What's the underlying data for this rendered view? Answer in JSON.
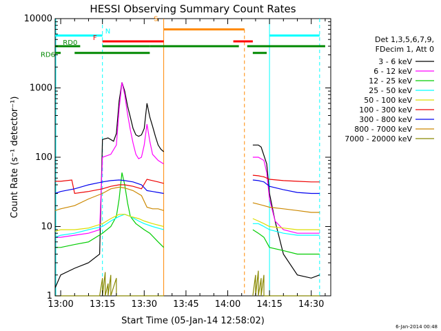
{
  "chart_data": {
    "type": "line",
    "title": "HESSI Observing Summary Count Rates",
    "xlabel": "Start Time (05-Jan-14 12:58:02)",
    "ylabel": "Count Rate (s⁻¹ detector⁻¹)",
    "y_scale": "log",
    "ylim": [
      1,
      10000
    ],
    "xlim": [
      "12:58",
      "14:37"
    ],
    "x_ticks": [
      "13:00",
      "13:15",
      "13:30",
      "13:45",
      "14:00",
      "14:15",
      "14:30"
    ],
    "y_ticks": [
      "1",
      "10",
      "100",
      "1000",
      "10000"
    ],
    "timestamp": "6-Jan-2014 00:48",
    "legend_header": [
      "Det 1,3,5,6,7,9,",
      "FDecim 1, Att 0"
    ],
    "legend_position": "right",
    "data_gaps": [
      [
        "13:37",
        "14:09"
      ]
    ],
    "flag_bars": [
      {
        "label": "N",
        "color": "#00ffff",
        "intervals": [
          [
            "12:58",
            "13:15"
          ],
          [
            "14:15",
            "14:33"
          ]
        ],
        "level": 5700
      },
      {
        "label": "F",
        "color": "#ff0000",
        "intervals": [
          [
            "13:15",
            "13:37"
          ],
          [
            "14:02",
            "14:09"
          ]
        ],
        "level": 4700
      },
      {
        "label": "S",
        "color": "#ff8800",
        "intervals": [
          [
            "13:37",
            "14:06"
          ]
        ],
        "level": 7000
      },
      {
        "label": "RD0",
        "color": "#008800",
        "intervals": [
          [
            "12:58",
            "13:07"
          ],
          [
            "13:15",
            "13:32"
          ],
          [
            "13:32",
            "14:04"
          ],
          [
            "14:07",
            "14:35"
          ]
        ],
        "level": 4000
      },
      {
        "label": "RD6",
        "color": "#008800",
        "intervals": [
          [
            "12:58",
            "13:00"
          ],
          [
            "13:05",
            "13:32"
          ],
          [
            "14:09",
            "14:14"
          ]
        ],
        "level": 3200
      }
    ],
    "series": [
      {
        "name": "3 - 6 keV",
        "color": "#000000",
        "points": [
          [
            "12:58",
            1.3
          ],
          [
            "13:00",
            2
          ],
          [
            "13:05",
            2.5
          ],
          [
            "13:10",
            3
          ],
          [
            "13:14",
            4
          ],
          [
            "13:15",
            180
          ],
          [
            "13:17",
            190
          ],
          [
            "13:19",
            170
          ],
          [
            "13:20",
            220
          ],
          [
            "13:21",
            650
          ],
          [
            "13:22",
            1200
          ],
          [
            "13:23",
            900
          ],
          [
            "13:24",
            550
          ],
          [
            "13:25",
            380
          ],
          [
            "13:26",
            260
          ],
          [
            "13:27",
            210
          ],
          [
            "13:28",
            200
          ],
          [
            "13:29",
            210
          ],
          [
            "13:30",
            260
          ],
          [
            "13:31",
            600
          ],
          [
            "13:32",
            380
          ],
          [
            "13:33",
            280
          ],
          [
            "13:34",
            200
          ],
          [
            "13:35",
            150
          ],
          [
            "13:36",
            130
          ],
          [
            "13:37",
            120
          ],
          [
            "14:09",
            150
          ],
          [
            "14:11",
            150
          ],
          [
            "14:12",
            140
          ],
          [
            "14:14",
            80
          ],
          [
            "14:15",
            30
          ],
          [
            "14:17",
            12
          ],
          [
            "14:20",
            4
          ],
          [
            "14:25",
            2
          ],
          [
            "14:30",
            1.8
          ],
          [
            "14:33",
            2
          ]
        ]
      },
      {
        "name": "6 - 12 keV",
        "color": "#ff00ff",
        "points": [
          [
            "12:58",
            7
          ],
          [
            "13:00",
            7
          ],
          [
            "13:05",
            7.5
          ],
          [
            "13:10",
            8
          ],
          [
            "13:14",
            9
          ],
          [
            "13:15",
            100
          ],
          [
            "13:18",
            110
          ],
          [
            "13:20",
            150
          ],
          [
            "13:21",
            500
          ],
          [
            "13:22",
            1200
          ],
          [
            "13:23",
            800
          ],
          [
            "13:24",
            420
          ],
          [
            "13:25",
            250
          ],
          [
            "13:26",
            160
          ],
          [
            "13:27",
            110
          ],
          [
            "13:28",
            95
          ],
          [
            "13:29",
            100
          ],
          [
            "13:30",
            150
          ],
          [
            "13:31",
            300
          ],
          [
            "13:32",
            170
          ],
          [
            "13:33",
            110
          ],
          [
            "13:35",
            90
          ],
          [
            "13:37",
            80
          ],
          [
            "14:09",
            100
          ],
          [
            "14:11",
            100
          ],
          [
            "14:13",
            90
          ],
          [
            "14:14",
            60
          ],
          [
            "14:15",
            25
          ],
          [
            "14:17",
            12
          ],
          [
            "14:20",
            9
          ],
          [
            "14:25",
            8
          ],
          [
            "14:30",
            8
          ],
          [
            "14:33",
            8
          ]
        ]
      },
      {
        "name": "12 - 25 keV",
        "color": "#00cc00",
        "points": [
          [
            "12:58",
            5
          ],
          [
            "13:00",
            5
          ],
          [
            "13:05",
            5.5
          ],
          [
            "13:10",
            6
          ],
          [
            "13:15",
            8
          ],
          [
            "13:18",
            10
          ],
          [
            "13:20",
            14
          ],
          [
            "13:21",
            25
          ],
          [
            "13:22",
            60
          ],
          [
            "13:23",
            40
          ],
          [
            "13:24",
            22
          ],
          [
            "13:25",
            14
          ],
          [
            "13:27",
            11
          ],
          [
            "13:30",
            9
          ],
          [
            "13:32",
            8
          ],
          [
            "13:35",
            6
          ],
          [
            "13:37",
            5
          ],
          [
            "14:09",
            9
          ],
          [
            "14:11",
            8
          ],
          [
            "14:13",
            7
          ],
          [
            "14:15",
            5
          ],
          [
            "14:20",
            4.5
          ],
          [
            "14:25",
            4
          ],
          [
            "14:30",
            4
          ],
          [
            "14:33",
            4
          ]
        ]
      },
      {
        "name": "25 - 50 keV",
        "color": "#00ffff",
        "points": [
          [
            "12:58",
            7
          ],
          [
            "13:00",
            7.5
          ],
          [
            "13:05",
            8
          ],
          [
            "13:10",
            9
          ],
          [
            "13:15",
            10
          ],
          [
            "13:18",
            12
          ],
          [
            "13:21",
            14
          ],
          [
            "13:23",
            15
          ],
          [
            "13:25",
            14
          ],
          [
            "13:28",
            12
          ],
          [
            "13:30",
            11
          ],
          [
            "13:33",
            10
          ],
          [
            "13:37",
            9
          ],
          [
            "14:09",
            11
          ],
          [
            "14:11",
            11
          ],
          [
            "14:13",
            10
          ],
          [
            "14:15",
            9
          ],
          [
            "14:20",
            8
          ],
          [
            "14:25",
            7.5
          ],
          [
            "14:30",
            7.5
          ],
          [
            "14:33",
            7.5
          ]
        ]
      },
      {
        "name": "50 - 100 keV",
        "color": "#dddd00",
        "points": [
          [
            "12:58",
            8.5
          ],
          [
            "13:00",
            9
          ],
          [
            "13:05",
            9
          ],
          [
            "13:10",
            9.5
          ],
          [
            "13:15",
            11
          ],
          [
            "13:18",
            13
          ],
          [
            "13:21",
            15
          ],
          [
            "13:23",
            15
          ],
          [
            "13:25",
            14
          ],
          [
            "13:28",
            13
          ],
          [
            "13:30",
            12
          ],
          [
            "13:33",
            11
          ],
          [
            "13:37",
            10
          ],
          [
            "14:09",
            13
          ],
          [
            "14:11",
            12
          ],
          [
            "14:13",
            11
          ],
          [
            "14:15",
            10
          ],
          [
            "14:20",
            9.5
          ],
          [
            "14:25",
            9
          ],
          [
            "14:30",
            9
          ],
          [
            "14:33",
            9
          ]
        ]
      },
      {
        "name": "100 - 300 keV",
        "color": "#ee0000",
        "points": [
          [
            "12:58",
            45
          ],
          [
            "13:00",
            45
          ],
          [
            "13:04",
            47
          ],
          [
            "13:05",
            30
          ],
          [
            "13:10",
            32
          ],
          [
            "13:15",
            35
          ],
          [
            "13:18",
            38
          ],
          [
            "13:21",
            40
          ],
          [
            "13:23",
            40
          ],
          [
            "13:26",
            38
          ],
          [
            "13:29",
            35
          ],
          [
            "13:31",
            48
          ],
          [
            "13:33",
            46
          ],
          [
            "13:35",
            44
          ],
          [
            "13:37",
            42
          ],
          [
            "14:09",
            55
          ],
          [
            "14:11",
            54
          ],
          [
            "14:13",
            52
          ],
          [
            "14:15",
            48
          ],
          [
            "14:20",
            46
          ],
          [
            "14:25",
            45
          ],
          [
            "14:30",
            44
          ],
          [
            "14:33",
            44
          ]
        ]
      },
      {
        "name": "300 - 800 keV",
        "color": "#0000ee",
        "points": [
          [
            "12:58",
            30
          ],
          [
            "13:00",
            32
          ],
          [
            "13:05",
            35
          ],
          [
            "13:10",
            40
          ],
          [
            "13:15",
            44
          ],
          [
            "13:18",
            46
          ],
          [
            "13:21",
            47
          ],
          [
            "13:23",
            46
          ],
          [
            "13:26",
            44
          ],
          [
            "13:29",
            40
          ],
          [
            "13:31",
            33
          ],
          [
            "13:33",
            32
          ],
          [
            "13:35",
            31
          ],
          [
            "13:37",
            30
          ],
          [
            "14:09",
            47
          ],
          [
            "14:11",
            46
          ],
          [
            "14:13",
            44
          ],
          [
            "14:15",
            38
          ],
          [
            "14:20",
            34
          ],
          [
            "14:25",
            31
          ],
          [
            "14:30",
            30
          ],
          [
            "14:33",
            30
          ]
        ]
      },
      {
        "name": "800 - 7000 keV",
        "color": "#cc8800",
        "points": [
          [
            "12:58",
            17
          ],
          [
            "13:00",
            18
          ],
          [
            "13:05",
            20
          ],
          [
            "13:10",
            25
          ],
          [
            "13:15",
            30
          ],
          [
            "13:18",
            35
          ],
          [
            "13:21",
            37
          ],
          [
            "13:23",
            36
          ],
          [
            "13:26",
            33
          ],
          [
            "13:29",
            28
          ],
          [
            "13:31",
            19
          ],
          [
            "13:33",
            18
          ],
          [
            "13:35",
            18
          ],
          [
            "13:37",
            17
          ],
          [
            "14:09",
            22
          ],
          [
            "14:11",
            21
          ],
          [
            "14:13",
            20
          ],
          [
            "14:15",
            19
          ],
          [
            "14:20",
            18
          ],
          [
            "14:25",
            17
          ],
          [
            "14:30",
            16
          ],
          [
            "14:33",
            16
          ]
        ]
      },
      {
        "name": "7000 - 20000 keV",
        "color": "#888800",
        "points": [
          [
            "12:58",
            1
          ],
          [
            "13:14",
            1
          ],
          [
            "13:15",
            1.8
          ],
          [
            "13:15",
            1
          ],
          [
            "13:16",
            2.2
          ],
          [
            "13:16",
            1
          ],
          [
            "13:17",
            1.5
          ],
          [
            "13:17",
            1
          ],
          [
            "13:18",
            2
          ],
          [
            "13:18",
            1
          ],
          [
            "13:20",
            1.8
          ],
          [
            "13:20",
            1
          ],
          [
            "13:37",
            1
          ],
          [
            "14:09",
            1
          ],
          [
            "14:10",
            2
          ],
          [
            "14:10",
            1
          ],
          [
            "14:11",
            2.3
          ],
          [
            "14:11",
            1
          ],
          [
            "14:12",
            1.8
          ],
          [
            "14:12",
            1
          ],
          [
            "14:13",
            2
          ],
          [
            "14:13",
            1
          ],
          [
            "14:33",
            1
          ]
        ]
      }
    ]
  }
}
